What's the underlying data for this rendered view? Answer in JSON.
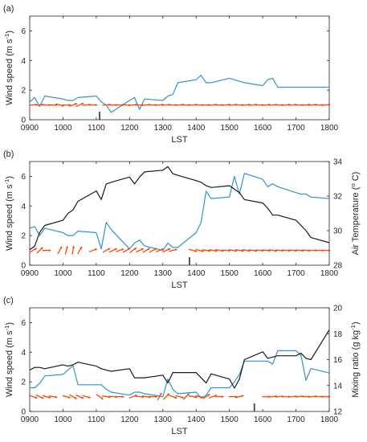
{
  "chart_data": [
    {
      "panel": "(a)",
      "type": "line",
      "xlabel": "LST",
      "ylabel": "Wind speed (m s",
      "ylabel_sup": "-1",
      "ylabel_close": ")",
      "x_ticks": [
        "0900",
        "1000",
        "1100",
        "1200",
        "1300",
        "1400",
        "1500",
        "1600",
        "1700",
        "1800"
      ],
      "xlim": [
        900,
        1800
      ],
      "ylim": [
        0,
        7
      ],
      "y_ticks": [
        "0",
        "2",
        "4",
        "6"
      ],
      "grid": false,
      "series": [
        {
          "color": "#2f95d0",
          "axis": "left",
          "x": [
            900,
            915,
            930,
            945,
            1000,
            1015,
            1030,
            1045,
            1100,
            1115,
            1130,
            1145,
            1200,
            1215,
            1230,
            1245,
            1300,
            1315,
            1330,
            1345,
            1400,
            1415,
            1430,
            1445,
            1500,
            1515,
            1530,
            1545,
            1600,
            1615,
            1630,
            1645,
            1700,
            1715,
            1730,
            1745,
            1800
          ],
          "values": [
            1.2,
            1.5,
            0.9,
            1.6,
            1.4,
            1.3,
            1.3,
            1.5,
            1.6,
            1.2,
            1.0,
            0.5,
            1.3,
            1.5,
            0.7,
            1.4,
            1.3,
            1.6,
            1.7,
            2.5,
            2.7,
            3.0,
            2.5,
            2.5,
            2.8,
            2.7,
            2.6,
            2.5,
            2.3,
            2.7,
            2.8,
            2.2,
            2.2,
            2.2,
            2.2,
            2.2,
            2.2
          ]
        }
      ],
      "wind_markers": {
        "color": "#ff4500",
        "row_y": 1.0,
        "x": [
          910,
          930,
          950,
          970,
          990,
          1010,
          1030,
          1050,
          1070,
          1090,
          1130,
          1150,
          1170,
          1190,
          1210,
          1230,
          1250,
          1270,
          1290,
          1310,
          1330,
          1350,
          1370,
          1390,
          1410,
          1430,
          1450,
          1470,
          1490,
          1510,
          1530,
          1550,
          1570,
          1590,
          1610,
          1630,
          1650,
          1670,
          1690,
          1710,
          1730,
          1750,
          1770,
          1790
        ],
        "angle": [
          5,
          5,
          0,
          0,
          -15,
          0,
          20,
          25,
          5,
          0,
          5,
          0,
          0,
          -5,
          5,
          0,
          5,
          0,
          5,
          5,
          0,
          5,
          0,
          5,
          0,
          0,
          5,
          0,
          5,
          5,
          0,
          5,
          5,
          0,
          5,
          5,
          0,
          5,
          5,
          0,
          5,
          5,
          0,
          5
        ]
      },
      "time_marker_x": 1110
    },
    {
      "panel": "(b)",
      "type": "line",
      "xlabel": "LST",
      "ylabel": "Wind speed (m s",
      "ylabel_sup": "-1",
      "ylabel_close": ")",
      "ylabel_right": "Air Temperature (",
      "ylabel_right_sup": "o",
      "ylabel_right_close": " C)",
      "x_ticks": [
        "0900",
        "1000",
        "1100",
        "1200",
        "1300",
        "1400",
        "1500",
        "1600",
        "1700",
        "1800"
      ],
      "xlim": [
        900,
        1800
      ],
      "ylim": [
        0,
        7
      ],
      "y_ticks": [
        "0",
        "2",
        "4",
        "6"
      ],
      "ylim_right": [
        28,
        34
      ],
      "y_ticks_right": [
        "28",
        "30",
        "32",
        "34"
      ],
      "grid": false,
      "series": [
        {
          "color": "#2f95d0",
          "axis": "left",
          "x": [
            900,
            915,
            930,
            945,
            1000,
            1015,
            1030,
            1045,
            1100,
            1115,
            1130,
            1145,
            1200,
            1215,
            1230,
            1245,
            1300,
            1315,
            1330,
            1345,
            1400,
            1415,
            1430,
            1445,
            1500,
            1515,
            1530,
            1545,
            1600,
            1615,
            1630,
            1645,
            1700,
            1715,
            1730,
            1745,
            1800
          ],
          "values": [
            2.5,
            2.6,
            2.0,
            2.5,
            2.2,
            2.0,
            2.0,
            2.3,
            2.2,
            1.1,
            2.9,
            2.4,
            1.1,
            1.5,
            1.7,
            1.3,
            1.0,
            1.5,
            1.2,
            1.2,
            2.2,
            2.9,
            5.0,
            4.5,
            4.6,
            6.0,
            4.8,
            6.2,
            5.8,
            5.3,
            5.5,
            5.3,
            4.9,
            4.8,
            4.8,
            4.6,
            4.5
          ]
        },
        {
          "color": "#1a1a1a",
          "axis": "right",
          "x": [
            900,
            915,
            930,
            945,
            1000,
            1015,
            1030,
            1045,
            1100,
            1115,
            1130,
            1145,
            1200,
            1215,
            1230,
            1245,
            1300,
            1315,
            1330,
            1345,
            1400,
            1415,
            1430,
            1445,
            1500,
            1515,
            1530,
            1545,
            1600,
            1615,
            1630,
            1645,
            1700,
            1715,
            1730,
            1745,
            1800
          ],
          "values": [
            28.9,
            29.1,
            29.9,
            30.3,
            30.6,
            31.0,
            31.2,
            31.7,
            32.3,
            31.8,
            32.7,
            32.8,
            33.1,
            32.7,
            33.1,
            33.4,
            33.5,
            33.7,
            33.3,
            33.2,
            32.9,
            32.8,
            32.6,
            32.5,
            32.6,
            32.4,
            32.2,
            31.8,
            31.6,
            31.3,
            30.9,
            30.9,
            30.6,
            30.3,
            30.0,
            29.6,
            29.3
          ]
        }
      ],
      "wind_markers": {
        "color": "#ff4500",
        "row_y": 1.0,
        "x": [
          910,
          930,
          950,
          990,
          1010,
          1030,
          1050,
          1090,
          1130,
          1150,
          1170,
          1190,
          1210,
          1230,
          1250,
          1270,
          1290,
          1310,
          1330,
          1390,
          1410,
          1430,
          1450,
          1470,
          1490,
          1510,
          1530,
          1550,
          1570,
          1590,
          1610,
          1630,
          1650,
          1670,
          1690,
          1710,
          1730,
          1750,
          1770,
          1790
        ],
        "angle": [
          30,
          45,
          0,
          60,
          75,
          80,
          60,
          20,
          30,
          25,
          20,
          30,
          35,
          25,
          30,
          30,
          20,
          25,
          15,
          -15,
          -15,
          -10,
          -10,
          -10,
          -5,
          -10,
          -10,
          -10,
          -10,
          -5,
          -5,
          -10,
          -5,
          -5,
          -5,
          -5,
          -5,
          0,
          0,
          0
        ]
      },
      "time_marker_x": 1380
    },
    {
      "panel": "(c)",
      "type": "line",
      "xlabel": "LST",
      "ylabel": "Wind speed (m s",
      "ylabel_sup": "-1",
      "ylabel_close": ")",
      "ylabel_right": "Mixing ratio (g kg",
      "ylabel_right_sup": "-1",
      "ylabel_right_close": ")",
      "x_ticks": [
        "0900",
        "1000",
        "1100",
        "1200",
        "1300",
        "1400",
        "1500",
        "1600",
        "1700",
        "1800"
      ],
      "xlim": [
        900,
        1800
      ],
      "ylim": [
        0,
        7
      ],
      "y_ticks": [
        "0",
        "2",
        "4",
        "6"
      ],
      "ylim_right": [
        12,
        20
      ],
      "y_ticks_right": [
        "12",
        "14",
        "16",
        "18",
        "20"
      ],
      "grid": false,
      "series": [
        {
          "color": "#2f95d0",
          "axis": "left",
          "x": [
            900,
            915,
            930,
            945,
            1000,
            1015,
            1030,
            1045,
            1100,
            1115,
            1130,
            1145,
            1200,
            1215,
            1230,
            1245,
            1300,
            1315,
            1330,
            1345,
            1400,
            1415,
            1430,
            1445,
            1500,
            1515,
            1530,
            1545,
            1600,
            1615,
            1630,
            1645,
            1700,
            1715,
            1730,
            1745,
            1800
          ],
          "values": [
            1.6,
            1.6,
            1.9,
            2.4,
            2.5,
            2.8,
            3.1,
            1.8,
            1.8,
            1.8,
            1.5,
            1.3,
            1.1,
            1.3,
            1.3,
            1.2,
            1.0,
            2.2,
            1.5,
            1.2,
            1.3,
            0.9,
            1.1,
            1.6,
            1.6,
            2.0,
            2.5,
            3.4,
            3.4,
            3.4,
            3.2,
            4.1,
            4.1,
            3.8,
            2.1,
            2.9,
            2.6
          ]
        },
        {
          "color": "#1a1a1a",
          "axis": "right",
          "x": [
            900,
            915,
            930,
            945,
            1000,
            1015,
            1030,
            1045,
            1100,
            1115,
            1130,
            1145,
            1200,
            1215,
            1230,
            1245,
            1300,
            1315,
            1330,
            1345,
            1400,
            1415,
            1430,
            1445,
            1500,
            1515,
            1530,
            1545,
            1600,
            1615,
            1630,
            1645,
            1700,
            1715,
            1730,
            1745,
            1800
          ],
          "values": [
            15.2,
            15.4,
            15.4,
            15.3,
            15.6,
            15.5,
            15.6,
            15.8,
            15.5,
            15.3,
            15.2,
            15.1,
            15.3,
            14.6,
            14.6,
            14.6,
            14.8,
            14.2,
            15.0,
            15.0,
            15.0,
            14.6,
            14.2,
            14.9,
            14.5,
            13.8,
            14.5,
            16.0,
            16.6,
            16.1,
            16.2,
            16.3,
            16.3,
            16.5,
            16.1,
            16.0,
            18.3
          ]
        }
      ],
      "wind_markers": {
        "color": "#ff4500",
        "row_y": 1.0,
        "x": [
          910,
          930,
          950,
          970,
          1010,
          1030,
          1050,
          1070,
          1110,
          1130,
          1150,
          1170,
          1210,
          1230,
          1250,
          1270,
          1290,
          1310,
          1330,
          1350,
          1370,
          1390,
          1410,
          1430,
          1450,
          1470,
          1510,
          1530,
          1610,
          1630,
          1650,
          1670,
          1690,
          1710,
          1730,
          1750,
          1770,
          1790
        ],
        "angle": [
          -20,
          -25,
          -15,
          -10,
          -15,
          -30,
          -25,
          -15,
          -35,
          -10,
          -5,
          0,
          20,
          -5,
          -10,
          0,
          60,
          45,
          -20,
          -15,
          45,
          -10,
          -10,
          35,
          20,
          0,
          0,
          15,
          0,
          5,
          5,
          0,
          5,
          5,
          0,
          5,
          0,
          0
        ]
      },
      "time_marker_x": 1575
    }
  ],
  "colors": {
    "wind_speed": "#2f95d0",
    "secondary": "#1a1a1a",
    "wind_vector": "#ff4500",
    "axis": "#262626"
  }
}
